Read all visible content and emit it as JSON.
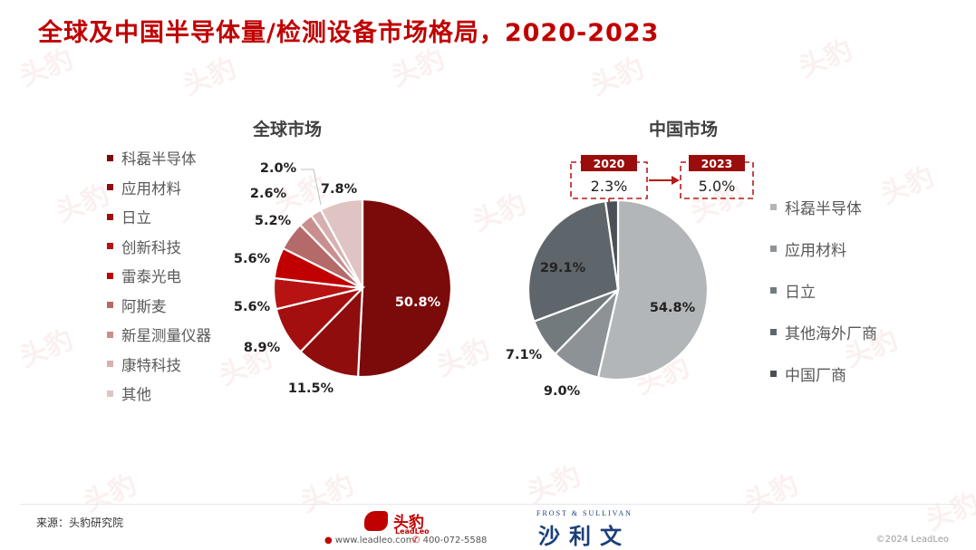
{
  "title": "全球及中国半导体量/检测设备市场格局，2020-2023",
  "chart_data": [
    {
      "type": "pie",
      "title": "全球市场",
      "categories": [
        "科磊半导体",
        "应用材料",
        "日立",
        "创新科技",
        "雷泰光电",
        "阿斯麦",
        "新星测量仪器",
        "康特科技",
        "其他"
      ],
      "values": [
        50.8,
        11.5,
        8.9,
        5.6,
        5.6,
        5.2,
        2.6,
        2.0,
        7.8
      ],
      "labels": [
        "50.8%",
        "11.5%",
        "8.9%",
        "5.6%",
        "5.6%",
        "5.2%",
        "2.6%",
        "2.0%",
        "7.8%"
      ],
      "colors": [
        "#7b0a0a",
        "#8f0d0d",
        "#a30f0f",
        "#b81313",
        "#c00000",
        "#b56a6a",
        "#c98f8f",
        "#d8b0b0",
        "#e0c4c4"
      ]
    },
    {
      "type": "pie",
      "title": "中国市场",
      "categories": [
        "科磊半导体",
        "应用材料",
        "日立",
        "其他海外厂商",
        "中国厂商"
      ],
      "values": [
        54.8,
        9.0,
        7.1,
        29.1,
        2.3
      ],
      "labels": [
        "54.8%",
        "9.0%",
        "7.1%",
        "29.1%",
        "2.3%"
      ],
      "colors": [
        "#b2b6b8",
        "#8c9295",
        "#737a7e",
        "#5f666b",
        "#4a5055"
      ],
      "annotation": {
        "from_year": "2020",
        "from_value": "2.3%",
        "to_year": "2023",
        "to_value": "5.0%"
      }
    }
  ],
  "footer": {
    "source": "来源：头豹研究院",
    "brand_cn": "头豹",
    "brand_en": "LeadLeo",
    "url": "www.leadleo.com",
    "phone": "400-072-5588",
    "partner_en": "FROST & SULLIVAN",
    "partner_cn": "沙利文",
    "copyright": "©2024 LeadLeo"
  },
  "watermark": "头豹"
}
